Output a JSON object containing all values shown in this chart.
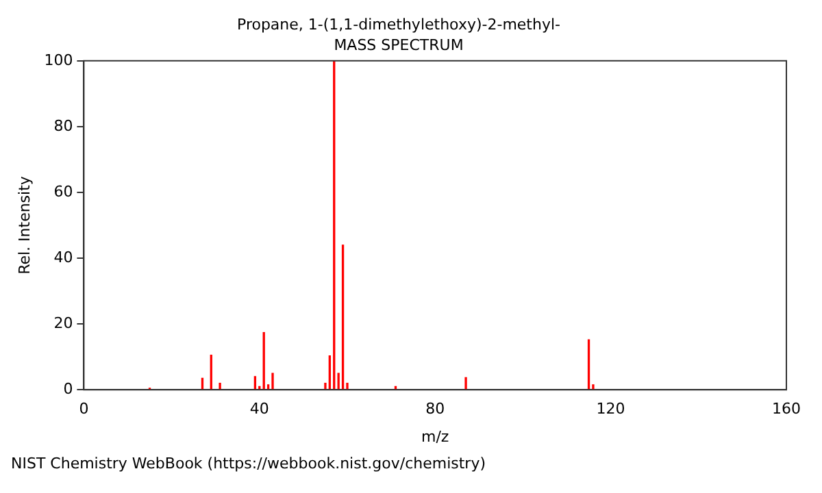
{
  "chart_data": {
    "type": "bar",
    "title": "Propane, 1-(1,1-dimethylethoxy)-2-methyl-",
    "subtitle": "MASS SPECTRUM",
    "xlabel": "m/z",
    "ylabel": "Rel. Intensity",
    "x": [
      15,
      27,
      29,
      31,
      39,
      40,
      41,
      42,
      43,
      55,
      56,
      57,
      58,
      59,
      60,
      71,
      87,
      115,
      116
    ],
    "values": [
      0.5,
      3.5,
      10.5,
      2,
      4,
      1,
      17.4,
      1.5,
      5,
      2,
      10.3,
      100,
      5,
      44,
      2,
      1,
      3.7,
      15.2,
      1.5
    ],
    "color": "#ff0000",
    "xlim": [
      0,
      160
    ],
    "xticks": [
      0,
      40,
      80,
      120,
      160
    ],
    "ylim": [
      0,
      100
    ],
    "yticks": [
      0,
      20,
      40,
      60,
      80,
      100
    ],
    "grid": false,
    "legend": false,
    "annotations": [
      "NIST Chemistry WebBook (https://webbook.nist.gov/chemistry)"
    ]
  }
}
